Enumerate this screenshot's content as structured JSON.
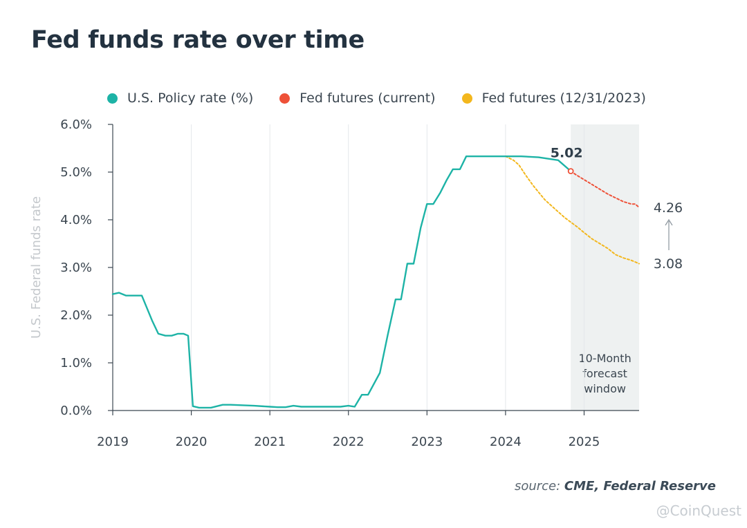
{
  "title": "Fed funds rate over time",
  "legend": [
    {
      "label": "U.S. Policy rate (%)",
      "color": "#1db3a6"
    },
    {
      "label": "Fed futures (current)",
      "color": "#ee5138"
    },
    {
      "label": "Fed futures (12/31/2023)",
      "color": "#f3b71d"
    }
  ],
  "source_prefix": "source:",
  "source_text": "CME, Federal Reserve",
  "watermark": "@CoinQuest",
  "chart_data": {
    "type": "line",
    "ylabel": "U.S. Federal funds rate",
    "xlabel": "",
    "yticks": [
      "0.0%",
      "1.0%",
      "2.0%",
      "3.0%",
      "4.0%",
      "5.0%",
      "6.0%"
    ],
    "xticks": [
      "2019",
      "2020",
      "2021",
      "2022",
      "2023",
      "2024",
      "2025"
    ],
    "ylim": [
      0,
      6
    ],
    "xlim": [
      2019.0,
      2025.7
    ],
    "forecast_window": {
      "start": 2024.83,
      "end": 2025.7,
      "label_lines": [
        "10-Month",
        "forecast",
        "window"
      ]
    },
    "annotations": {
      "current_rate": "5.02",
      "end_current": "4.26",
      "end_old": "3.08"
    },
    "series": [
      {
        "name": "U.S. Policy rate (%)",
        "color": "#1db3a6",
        "style": "solid",
        "x": [
          2019.0,
          2019.08,
          2019.17,
          2019.25,
          2019.37,
          2019.5,
          2019.58,
          2019.67,
          2019.75,
          2019.83,
          2019.9,
          2019.96,
          2020.02,
          2020.1,
          2020.25,
          2020.4,
          2020.5,
          2020.8,
          2021.0,
          2021.1,
          2021.2,
          2021.3,
          2021.4,
          2021.55,
          2021.6,
          2021.85,
          2021.9,
          2022.0,
          2022.08,
          2022.17,
          2022.25,
          2022.4,
          2022.5,
          2022.6,
          2022.67,
          2022.75,
          2022.83,
          2022.92,
          2023.0,
          2023.08,
          2023.17,
          2023.25,
          2023.33,
          2023.42,
          2023.5,
          2023.67,
          2023.83,
          2024.0,
          2024.2,
          2024.42,
          2024.67,
          2024.83
        ],
        "y": [
          2.44,
          2.47,
          2.41,
          2.41,
          2.41,
          1.89,
          1.61,
          1.57,
          1.57,
          1.61,
          1.61,
          1.57,
          0.09,
          0.06,
          0.06,
          0.12,
          0.12,
          0.1,
          0.08,
          0.07,
          0.07,
          0.1,
          0.08,
          0.08,
          0.08,
          0.08,
          0.08,
          0.1,
          0.08,
          0.33,
          0.33,
          0.79,
          1.58,
          2.33,
          2.33,
          3.08,
          3.08,
          3.83,
          4.33,
          4.33,
          4.57,
          4.83,
          5.06,
          5.06,
          5.33,
          5.33,
          5.33,
          5.33,
          5.33,
          5.31,
          5.25,
          5.02
        ]
      },
      {
        "name": "Fed futures (current)",
        "color": "#ee5138",
        "style": "dashed",
        "x": [
          2024.83,
          2024.9,
          2025.0,
          2025.1,
          2025.2,
          2025.3,
          2025.4,
          2025.5,
          2025.6,
          2025.65,
          2025.7
        ],
        "y": [
          5.02,
          4.94,
          4.84,
          4.74,
          4.64,
          4.54,
          4.46,
          4.38,
          4.33,
          4.33,
          4.26
        ]
      },
      {
        "name": "Fed futures (12/31/2023)",
        "color": "#f3b71d",
        "style": "dashed",
        "x": [
          2024.0,
          2024.1,
          2024.17,
          2024.25,
          2024.35,
          2024.42,
          2024.5,
          2024.6,
          2024.75,
          2024.83,
          2024.92,
          2025.0,
          2025.1,
          2025.2,
          2025.3,
          2025.4,
          2025.5,
          2025.6,
          2025.7
        ],
        "y": [
          5.33,
          5.25,
          5.15,
          4.95,
          4.72,
          4.58,
          4.42,
          4.27,
          4.05,
          3.95,
          3.84,
          3.73,
          3.6,
          3.5,
          3.4,
          3.27,
          3.2,
          3.15,
          3.08
        ]
      }
    ]
  }
}
